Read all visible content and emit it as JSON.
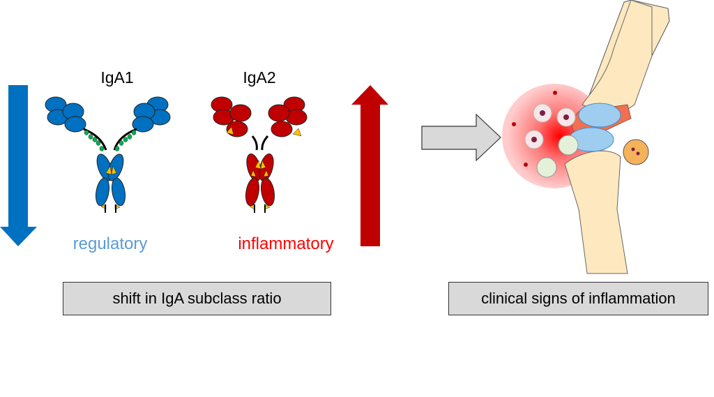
{
  "labels": {
    "iga1": "IgA1",
    "iga2": "IgA2",
    "regulatory": "regulatory",
    "inflammatory": "inflammatory"
  },
  "boxes": {
    "left": "shift in IgA subclass ratio",
    "right": "clinical signs of inflammation"
  },
  "colors": {
    "iga1": "#0070c0",
    "iga2": "#c00000",
    "regulatory_text": "#5b9bd5",
    "inflammatory_text": "#ff0000",
    "glycan": "#ffc000",
    "o_glycan": "#00b050",
    "box_fill": "#d9d9d9"
  },
  "arrows": {
    "left": "down",
    "right": "up",
    "middle": "right"
  }
}
